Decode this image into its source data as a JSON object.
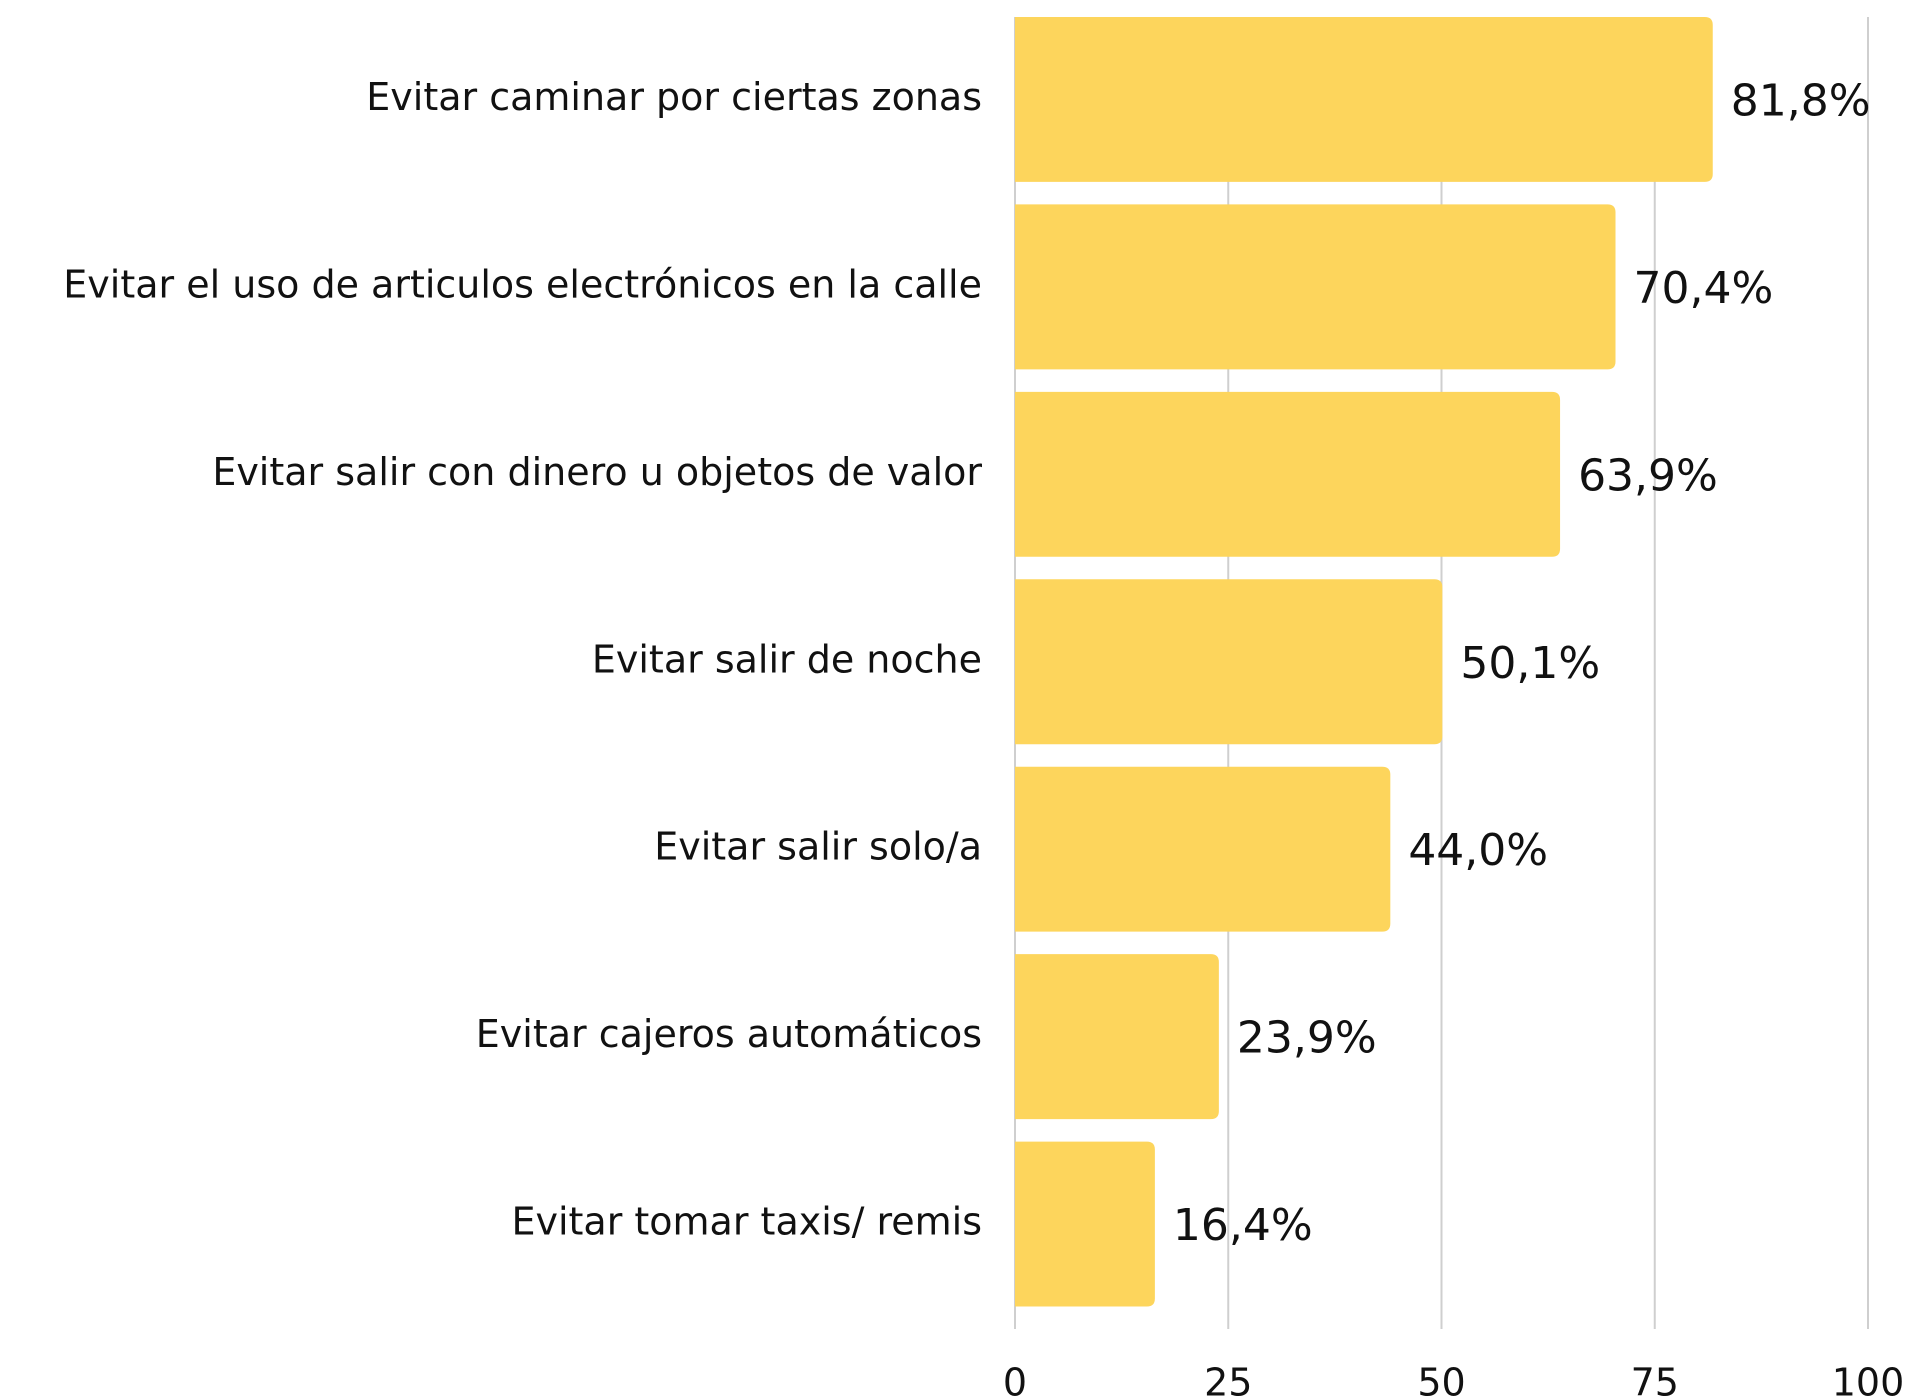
{
  "chart_data": {
    "type": "hbar",
    "categories": [
      "Evitar caminar por ciertas zonas",
      "Evitar el uso de articulos electrónicos en la calle",
      "Evitar salir con dinero u objetos de valor",
      "Evitar salir de noche",
      "Evitar salir solo/a",
      "Evitar cajeros automáticos",
      "Evitar tomar taxis/ remis"
    ],
    "values": [
      81.8,
      70.4,
      63.9,
      50.1,
      44.0,
      23.9,
      16.4
    ],
    "value_labels": [
      "81,8%",
      "70,4%",
      "63,9%",
      "50,1%",
      "44,0%",
      "23,9%",
      "16,4%"
    ],
    "color": "#FDD55C",
    "xlim": [
      0,
      100
    ],
    "xticks": [
      0,
      25,
      50,
      75,
      100
    ],
    "grid": true
  }
}
